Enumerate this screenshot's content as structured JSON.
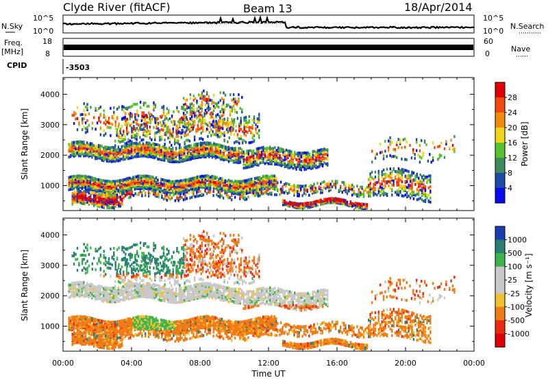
{
  "header": {
    "station": "Clyde River (fitACF)",
    "beam": "Beam 13",
    "date": "18/Apr/2014"
  },
  "top_panels": {
    "nsky_label": "N.Sky",
    "nsky_ticks": [
      "10^5",
      "10^0"
    ],
    "nsearch_label": "N.Search",
    "nsearch_ticks": [
      "10^5",
      "10^0"
    ],
    "freq_label": "Freq.",
    "freq_unit": "[MHz]",
    "freq_ticks": [
      "18",
      "8"
    ],
    "nave_label": "Nave",
    "nave_ticks": [
      "60",
      "0"
    ],
    "cpid_label": "CPID",
    "cpid_value": "-3503"
  },
  "chart_data": [
    {
      "type": "heatmap",
      "name": "power",
      "ylabel": "Slant Range [km]",
      "ylim": [
        180,
        4550
      ],
      "yticks": [
        "1000",
        "2000",
        "3000",
        "4000"
      ],
      "xlim": [
        0,
        24
      ],
      "colorbar_label": "Power [dB]",
      "colorbar_ticks": [
        "4",
        "8",
        "12",
        "16",
        "20",
        "24",
        "28"
      ],
      "colors": [
        "#0a0aee",
        "#1c4ca8",
        "#3f8a5a",
        "#58c02c",
        "#f0d41c",
        "#f28a10",
        "#f04a0c",
        "#e00000"
      ]
    },
    {
      "type": "heatmap",
      "name": "velocity",
      "ylabel": "Slant Range [km]",
      "ylim": [
        180,
        4550
      ],
      "yticks": [
        "1000",
        "2000",
        "3000",
        "4000"
      ],
      "xlim": [
        0,
        24
      ],
      "xticks": [
        "00:00",
        "04:00",
        "08:00",
        "12:00",
        "16:00",
        "20:00",
        "00:00"
      ],
      "xlabel": "Time UT",
      "colorbar_label": "Velocity [m s⁻¹]",
      "colorbar_ticks": [
        "1000",
        "500",
        "100",
        "25",
        "-25",
        "-100",
        "-500",
        "-1000"
      ],
      "colors": [
        "#1c3cb4",
        "#2a7e78",
        "#3cb44c",
        "#c8c8c8",
        "#c8c8c8",
        "#f0c030",
        "#f07a14",
        "#e82a10",
        "#e00000"
      ]
    }
  ]
}
